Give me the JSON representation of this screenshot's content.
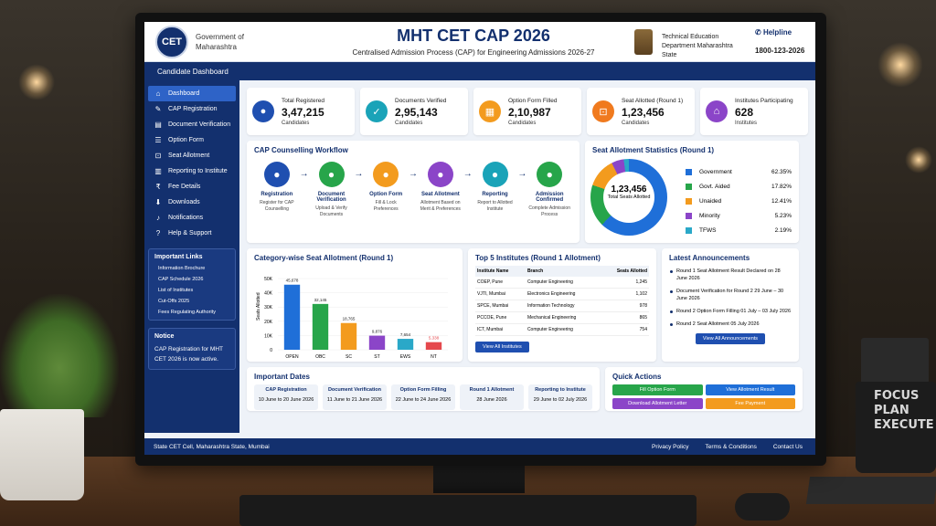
{
  "header": {
    "logo_text": "CET",
    "government": "Government of Maharashtra",
    "title": "MHT CET CAP 2026",
    "subtitle": "Centralised Admission Process (CAP) for Engineering Admissions 2026-27",
    "department": "Technical Education Department Maharashtra State",
    "helpline_label": "Helpline",
    "helpline_number": "1800-123-2026"
  },
  "nav": {
    "candidate_dashboard": "Candidate Dashboard"
  },
  "sidebar": {
    "items": [
      {
        "label": "Dashboard",
        "icon": "home-icon"
      },
      {
        "label": "CAP Registration",
        "icon": "edit-icon"
      },
      {
        "label": "Document Verification",
        "icon": "document-icon"
      },
      {
        "label": "Option Form",
        "icon": "list-icon"
      },
      {
        "label": "Seat Allotment",
        "icon": "seat-icon"
      },
      {
        "label": "Reporting to Institute",
        "icon": "building-icon"
      },
      {
        "label": "Fee Details",
        "icon": "rupee-icon"
      },
      {
        "label": "Downloads",
        "icon": "download-icon"
      },
      {
        "label": "Notifications",
        "icon": "bell-icon"
      },
      {
        "label": "Help & Support",
        "icon": "help-icon"
      }
    ],
    "important_links_title": "Important Links",
    "links": [
      "Information Brochure",
      "CAP Schedule 2026",
      "List of Institutes",
      "Cut-Offs 2025",
      "Fees Regulating Authority"
    ],
    "notice_title": "Notice",
    "notice_text": "CAP Registration for MHT CET 2026 is now active."
  },
  "stats": [
    {
      "title": "Total Registered",
      "value": "3,47,215",
      "sub": "Candidates",
      "color": "#1f4fb0",
      "icon": "user-icon"
    },
    {
      "title": "Documents Verified",
      "value": "2,95,143",
      "sub": "Candidates",
      "color": "#1aa3b8",
      "icon": "document-check-icon"
    },
    {
      "title": "Option Form Filled",
      "value": "2,10,987",
      "sub": "Candidates",
      "color": "#f39b1e",
      "icon": "form-icon"
    },
    {
      "title": "Seat Allotted (Round 1)",
      "value": "1,23,456",
      "sub": "Candidates",
      "color": "#f07a1e",
      "icon": "seat-icon"
    },
    {
      "title": "Institutes Participating",
      "value": "628",
      "sub": "Institutes",
      "color": "#8b45c8",
      "icon": "institute-icon"
    }
  ],
  "workflow": {
    "title": "CAP Counselling Workflow",
    "steps": [
      {
        "name": "Registration",
        "desc": "Register for CAP Counselling",
        "color": "#1f4fb0"
      },
      {
        "name": "Document Verification",
        "desc": "Upload & Verify Documents",
        "color": "#27a54a"
      },
      {
        "name": "Option Form",
        "desc": "Fill & Lock Preferences",
        "color": "#f39b1e"
      },
      {
        "name": "Seat Allotment",
        "desc": "Allotment Based on Merit & Preferences",
        "color": "#8b45c8"
      },
      {
        "name": "Reporting",
        "desc": "Report to Allotted Institute",
        "color": "#1aa3b8"
      },
      {
        "name": "Admission Confirmed",
        "desc": "Complete Admission Process",
        "color": "#27a54a"
      }
    ]
  },
  "seat_stats": {
    "title": "Seat Allotment Statistics (Round 1)",
    "center_value": "1,23,456",
    "center_label": "Total Seats Allotted",
    "legend": [
      {
        "name": "Government",
        "pct": "62.35%",
        "color": "#1f6fd8"
      },
      {
        "name": "Govt. Aided",
        "pct": "17.82%",
        "color": "#27a54a"
      },
      {
        "name": "Unaided",
        "pct": "12.41%",
        "color": "#f39b1e"
      },
      {
        "name": "Minority",
        "pct": "5.23%",
        "color": "#8b45c8"
      },
      {
        "name": "TFWS",
        "pct": "2.19%",
        "color": "#2aa8c8"
      }
    ]
  },
  "chart_data": {
    "type": "bar",
    "title": "Category-wise Seat Allotment (Round 1)",
    "ylabel": "Seats Allotted",
    "categories": [
      "OPEN",
      "OBC",
      "SC",
      "ST",
      "EWS",
      "NT"
    ],
    "values": [
      45678,
      32145,
      18765,
      9876,
      7654,
      5338
    ],
    "value_labels": [
      "45,678",
      "32,145",
      "18,765",
      "9,876",
      "7,654",
      "5,338"
    ],
    "colors": [
      "#1f6fd8",
      "#27a54a",
      "#f39b1e",
      "#8b45c8",
      "#2aa8c8",
      "#e5484d"
    ],
    "yticks": [
      "50K",
      "40K",
      "30K",
      "20K",
      "10K",
      "0"
    ],
    "ylim": [
      0,
      50000
    ]
  },
  "top5": {
    "title": "Top 5 Institutes (Round 1 Allotment)",
    "headers": [
      "Institute Name",
      "Branch",
      "Seats Allotted"
    ],
    "rows": [
      [
        "COEP, Pune",
        "Computer Engineering",
        "1,245"
      ],
      [
        "VJTI, Mumbai",
        "Electronics Engineering",
        "1,102"
      ],
      [
        "SPCE, Mumbai",
        "Information Technology",
        "978"
      ],
      [
        "PCCOE, Pune",
        "Mechanical Engineering",
        "865"
      ],
      [
        "ICT, Mumbai",
        "Computer Engineering",
        "754"
      ]
    ],
    "button": "View All Institutes"
  },
  "announcements": {
    "title": "Latest Announcements",
    "items": [
      "Round 1 Seat Allotment Result Declared on 28 June 2026",
      "Document Verification for Round 2 29 June – 30 June 2026",
      "Round 2 Option Form Filling 01 July – 03 July 2026",
      "Round 2 Seat Allotment 05 July 2026"
    ],
    "button": "View All Announcements"
  },
  "dates": {
    "title": "Important Dates",
    "items": [
      {
        "name": "CAP Registration",
        "date": "10 June to 20 June 2026"
      },
      {
        "name": "Document Verification",
        "date": "11 June to 21 June 2026"
      },
      {
        "name": "Option Form Filling",
        "date": "22 June to 24 June 2026"
      },
      {
        "name": "Round 1 Allotment",
        "date": "28 June 2026"
      },
      {
        "name": "Reporting to Institute",
        "date": "29 June to 02 July 2026"
      }
    ]
  },
  "quick": {
    "title": "Quick Actions",
    "actions": [
      {
        "label": "Fill Option Form",
        "color": "#27a54a"
      },
      {
        "label": "View Allotment Result",
        "color": "#1f6fd8"
      },
      {
        "label": "Download Allotment Letter",
        "color": "#8b45c8"
      },
      {
        "label": "Fee Payment",
        "color": "#f39b1e"
      }
    ]
  },
  "footer": {
    "text": "State CET Cell, Maharashtra State, Mumbai",
    "links": [
      "Privacy Policy",
      "Terms & Conditions",
      "Contact Us"
    ]
  },
  "mug_text": [
    "FOCUS",
    "PLAN",
    "EXECUTE"
  ]
}
